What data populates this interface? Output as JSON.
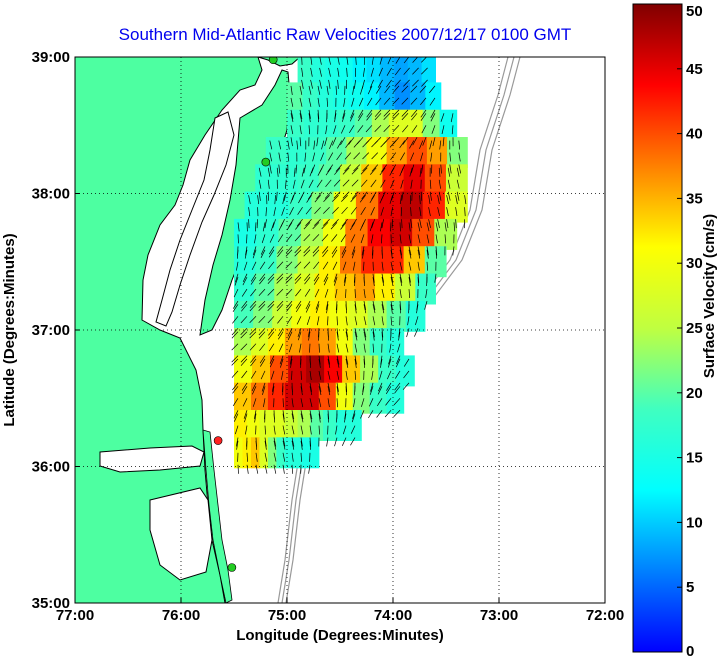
{
  "chart_data": {
    "type": "heatmap",
    "title": "Southern Mid-Atlantic Raw Velocities 2007/12/17 0100 GMT",
    "xlabel": "Longitude (Degrees:Minutes)",
    "ylabel": "Latitude (Degrees:Minutes)",
    "xlim": [
      -77,
      -72
    ],
    "ylim": [
      35,
      39
    ],
    "x_ticks": [
      {
        "value": -77,
        "label": "77:00"
      },
      {
        "value": -76,
        "label": "76:00"
      },
      {
        "value": -75,
        "label": "75:00"
      },
      {
        "value": -74,
        "label": "74:00"
      },
      {
        "value": -73,
        "label": "73:00"
      },
      {
        "value": -72,
        "label": "72:00"
      }
    ],
    "y_ticks": [
      {
        "value": 39,
        "label": "39:00"
      },
      {
        "value": 38,
        "label": "38:00"
      },
      {
        "value": 37,
        "label": "37:00"
      },
      {
        "value": 36,
        "label": "36:00"
      },
      {
        "value": 35,
        "label": "35:00"
      }
    ],
    "grid": "dotted",
    "colorbar": {
      "label": "Surface Velocity (cm/s)",
      "range": [
        0,
        50
      ],
      "ticks": [
        0,
        5,
        10,
        15,
        20,
        25,
        30,
        35,
        40,
        45,
        50
      ],
      "colormap": "jet",
      "placement": "right"
    },
    "colors": {
      "land": "#4dffa1",
      "water": "#ffffff",
      "coast_line": "#000000",
      "bathymetry": "#999999",
      "station_marker": "#22cc22",
      "station_marker_alt": "#ff2222"
    },
    "stations": [
      {
        "lon": -75.13,
        "lat": 38.98
      },
      {
        "lon": -75.2,
        "lat": 38.23
      },
      {
        "lon": -75.65,
        "lat": 36.19
      },
      {
        "lon": -75.52,
        "lat": 35.26
      }
    ],
    "velocity_maxima": [
      {
        "lon": -73.95,
        "lat": 37.8,
        "speed": 47
      },
      {
        "lon": -74.78,
        "lat": 36.6,
        "speed": 48
      }
    ],
    "velocity_field": [
      {
        "lat": 38.92,
        "lon_range": [
          -74.9,
          -73.6
        ],
        "speeds": [
          18,
          16,
          15,
          14,
          12,
          11,
          9,
          8,
          9,
          11
        ]
      },
      {
        "lat": 38.7,
        "lon_range": [
          -75.0,
          -73.55
        ],
        "speeds": [
          20,
          18,
          16,
          15,
          14,
          12,
          9,
          7,
          9,
          12
        ]
      },
      {
        "lat": 38.5,
        "lon_range": [
          -75.0,
          -73.4
        ],
        "speeds": [
          18,
          17,
          17,
          18,
          20,
          24,
          28,
          28,
          22,
          14
        ]
      },
      {
        "lat": 38.3,
        "lon_range": [
          -75.2,
          -73.3
        ],
        "speeds": [
          18,
          17,
          18,
          20,
          24,
          30,
          36,
          40,
          36,
          22
        ]
      },
      {
        "lat": 38.1,
        "lon_range": [
          -75.3,
          -73.3
        ],
        "speeds": [
          17,
          17,
          18,
          20,
          26,
          34,
          42,
          45,
          40,
          26
        ]
      },
      {
        "lat": 37.9,
        "lon_range": [
          -75.4,
          -73.3
        ],
        "speeds": [
          16,
          16,
          18,
          22,
          30,
          38,
          45,
          47,
          42,
          28
        ]
      },
      {
        "lat": 37.7,
        "lon_range": [
          -75.5,
          -73.4
        ],
        "speeds": [
          15,
          17,
          20,
          24,
          30,
          38,
          44,
          46,
          40,
          24
        ]
      },
      {
        "lat": 37.5,
        "lon_range": [
          -75.5,
          -73.5
        ],
        "speeds": [
          16,
          18,
          22,
          26,
          32,
          38,
          42,
          42,
          34,
          20
        ]
      },
      {
        "lat": 37.3,
        "lon_range": [
          -75.5,
          -73.6
        ],
        "speeds": [
          17,
          20,
          24,
          28,
          32,
          34,
          36,
          32,
          26,
          18
        ]
      },
      {
        "lat": 37.1,
        "lon_range": [
          -75.5,
          -73.7
        ],
        "speeds": [
          19,
          22,
          26,
          30,
          32,
          30,
          28,
          24,
          20,
          16
        ]
      },
      {
        "lat": 36.9,
        "lon_range": [
          -75.5,
          -73.9
        ],
        "speeds": [
          24,
          28,
          32,
          36,
          38,
          36,
          30,
          22,
          18,
          16
        ]
      },
      {
        "lat": 36.7,
        "lon_range": [
          -75.5,
          -73.8
        ],
        "speeds": [
          30,
          34,
          40,
          46,
          48,
          44,
          34,
          24,
          18,
          16
        ]
      },
      {
        "lat": 36.5,
        "lon_range": [
          -75.5,
          -73.9
        ],
        "speeds": [
          34,
          38,
          42,
          46,
          46,
          40,
          30,
          22,
          18,
          16
        ]
      },
      {
        "lat": 36.3,
        "lon_range": [
          -75.5,
          -74.3
        ],
        "speeds": [
          32,
          30,
          28,
          28,
          26,
          24,
          20,
          18,
          16,
          16
        ]
      },
      {
        "lat": 36.1,
        "lon_range": [
          -75.5,
          -74.7
        ],
        "speeds": [
          30,
          32,
          34,
          28,
          22,
          18,
          16,
          16,
          15,
          15
        ]
      }
    ]
  }
}
